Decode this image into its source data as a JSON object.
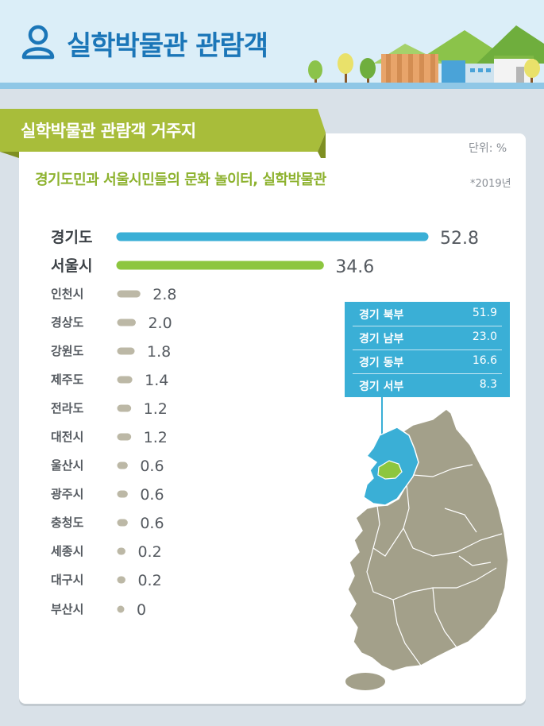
{
  "header": {
    "title": "실학박물관 관람객"
  },
  "section": {
    "title": "실학박물관 관람객 거주지",
    "unit": "단위: %",
    "subtitle": "경기도민과 서울시민들의 문화 놀이터, 실학박물관",
    "year": "*2019년"
  },
  "colors": {
    "gyeonggi": "#3aafd6",
    "seoul": "#8dc63f",
    "other": "#bcb8a6",
    "ribbon": "#a8bd3a"
  },
  "chart_data": {
    "type": "bar",
    "orientation": "horizontal",
    "categories": [
      "경기도",
      "서울시",
      "인천시",
      "경상도",
      "강원도",
      "제주도",
      "전라도",
      "대전시",
      "울산시",
      "광주시",
      "충청도",
      "세종시",
      "대구시",
      "부산시"
    ],
    "values": [
      52.8,
      34.6,
      2.8,
      2.0,
      1.8,
      1.4,
      1.2,
      1.2,
      0.6,
      0.6,
      0.6,
      0.2,
      0.2,
      0
    ],
    "value_labels": [
      "52.8",
      "34.6",
      "2.8",
      "2.0",
      "1.8",
      "1.4",
      "1.2",
      "1.2",
      "0.6",
      "0.6",
      "0.6",
      "0.2",
      "0.2",
      "0"
    ],
    "title": "실학박물관 관람객 거주지",
    "subtitle": "경기도민과 서울시민들의 문화 놀이터, 실학박물관",
    "unit": "%",
    "grid": false
  },
  "gyeonggi_breakdown": [
    {
      "name": "경기 북부",
      "value": "51.9"
    },
    {
      "name": "경기 남부",
      "value": "23.0"
    },
    {
      "name": "경기 동부",
      "value": "16.6"
    },
    {
      "name": "경기 서부",
      "value": "8.3"
    }
  ]
}
